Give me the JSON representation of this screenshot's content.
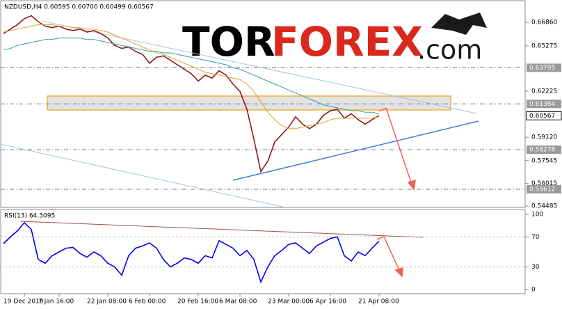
{
  "logo": {
    "part1": "TOR",
    "part2": "FOREX",
    "part3": ".com"
  },
  "chart_data": [
    {
      "type": "line",
      "title": "NZDUSD,H4 0.60595 0.60700 0.60499 0.60567",
      "categories": [
        null,
        null,
        null,
        "19 Dec 2019",
        null,
        null,
        null,
        null,
        "7 Jan 16:00",
        null,
        null,
        null,
        null,
        null,
        null,
        "22 Jan 08:00",
        null,
        null,
        null,
        null,
        null,
        "6 Feb 00:00",
        null,
        null,
        null,
        null,
        null,
        null,
        "20 Feb 16:00",
        null,
        null,
        null,
        null,
        null,
        "6 Mar 08:00",
        null,
        null,
        null,
        null,
        null,
        null,
        "23 Mar 00:00",
        null,
        null,
        null,
        null,
        null,
        "6 Apr 16:00",
        null,
        null,
        null,
        null,
        null,
        null,
        "21 Apr 08:00"
      ],
      "series": [
        {
          "color": "#8b1a1a",
          "values": [
            0.661,
            0.664,
            0.667,
            0.671,
            0.673,
            0.669,
            0.666,
            0.665,
            0.666,
            0.664,
            0.663,
            0.664,
            0.662,
            0.663,
            0.661,
            0.658,
            0.653,
            0.651,
            0.652,
            0.649,
            0.647,
            0.641,
            0.645,
            0.646,
            0.643,
            0.64,
            0.637,
            0.634,
            0.629,
            0.633,
            0.631,
            0.636,
            0.633,
            0.627,
            0.622,
            0.61,
            0.59,
            0.568,
            0.575,
            0.588,
            0.593,
            0.598,
            0.605,
            0.6,
            0.597,
            0.6,
            0.606,
            0.609,
            0.61,
            0.604,
            0.607,
            0.603,
            0.6,
            0.603,
            0.6057
          ]
        },
        {
          "color": "#e0a030",
          "values": [
            0.662,
            0.663,
            0.664,
            0.665,
            0.666,
            0.667,
            0.667,
            0.667,
            0.666,
            0.666,
            0.665,
            0.665,
            0.664,
            0.664,
            0.663,
            0.662,
            0.66,
            0.658,
            0.656,
            0.654,
            0.652,
            0.65,
            0.648,
            0.647,
            0.645,
            0.643,
            0.641,
            0.639,
            0.637,
            0.635,
            0.634,
            0.633,
            0.632,
            0.631,
            0.63,
            0.627,
            0.622,
            0.615,
            0.608,
            0.603,
            0.599,
            0.597,
            0.597,
            0.598,
            0.599,
            0.6,
            0.601,
            0.603,
            0.604,
            0.604,
            0.604,
            0.604,
            0.604,
            0.604,
            0.605
          ]
        },
        {
          "color": "#2aa198",
          "values": [
            0.65,
            0.651,
            0.653,
            0.654,
            0.655,
            0.656,
            0.657,
            0.657,
            0.658,
            0.658,
            0.658,
            0.658,
            0.657,
            0.657,
            0.656,
            0.655,
            0.654,
            0.653,
            0.652,
            0.651,
            0.65,
            0.649,
            0.649,
            0.648,
            0.648,
            0.647,
            0.646,
            0.645,
            0.644,
            0.643,
            0.642,
            0.641,
            0.64,
            0.638,
            0.637,
            0.635,
            0.633,
            0.631,
            0.629,
            0.627,
            0.625,
            0.623,
            0.621,
            0.619,
            0.617,
            0.615,
            0.613,
            0.612,
            0.611,
            0.61,
            0.609,
            0.609,
            0.608,
            0.608,
            0.607
          ]
        }
      ],
      "ylim": [
        0.543,
        0.6836
      ],
      "yticks": [
        {
          "value": 0.6686,
          "label": "0.66860"
        },
        {
          "value": 0.65275,
          "label": "0.65275"
        },
        {
          "value": 0.62225,
          "label": "0.62225"
        },
        {
          "value": 0.5912,
          "label": "0.59120"
        },
        {
          "value": 0.57545,
          "label": "0.57545"
        },
        {
          "value": 0.56015,
          "label": "0.56015"
        },
        {
          "value": 0.54485,
          "label": "0.54485"
        }
      ],
      "levels": [
        {
          "value": 0.63795,
          "label": "0.63795"
        },
        {
          "value": 0.61364,
          "label": "0.61364"
        },
        {
          "value": 0.58278,
          "label": "0.58278"
        },
        {
          "value": 0.55612,
          "label": "0.55612"
        }
      ],
      "last_price": {
        "value": 0.60567,
        "label": "0.60567"
      }
    },
    {
      "type": "line",
      "title": "RSI(13) 64.3095",
      "series": [
        {
          "color": "#0000ee",
          "values": [
            61,
            70,
            78,
            89,
            80,
            40,
            35,
            45,
            50,
            55,
            56,
            48,
            43,
            50,
            45,
            35,
            30,
            19,
            45,
            55,
            58,
            62,
            55,
            40,
            30,
            35,
            42,
            40,
            35,
            45,
            42,
            65,
            60,
            55,
            45,
            52,
            40,
            10,
            30,
            45,
            52,
            60,
            62,
            55,
            48,
            58,
            63,
            68,
            70,
            45,
            38,
            50,
            45,
            55,
            64.3095
          ]
        }
      ],
      "ylim": [
        0,
        100
      ],
      "yticks": [
        100,
        70,
        30,
        0
      ]
    }
  ]
}
